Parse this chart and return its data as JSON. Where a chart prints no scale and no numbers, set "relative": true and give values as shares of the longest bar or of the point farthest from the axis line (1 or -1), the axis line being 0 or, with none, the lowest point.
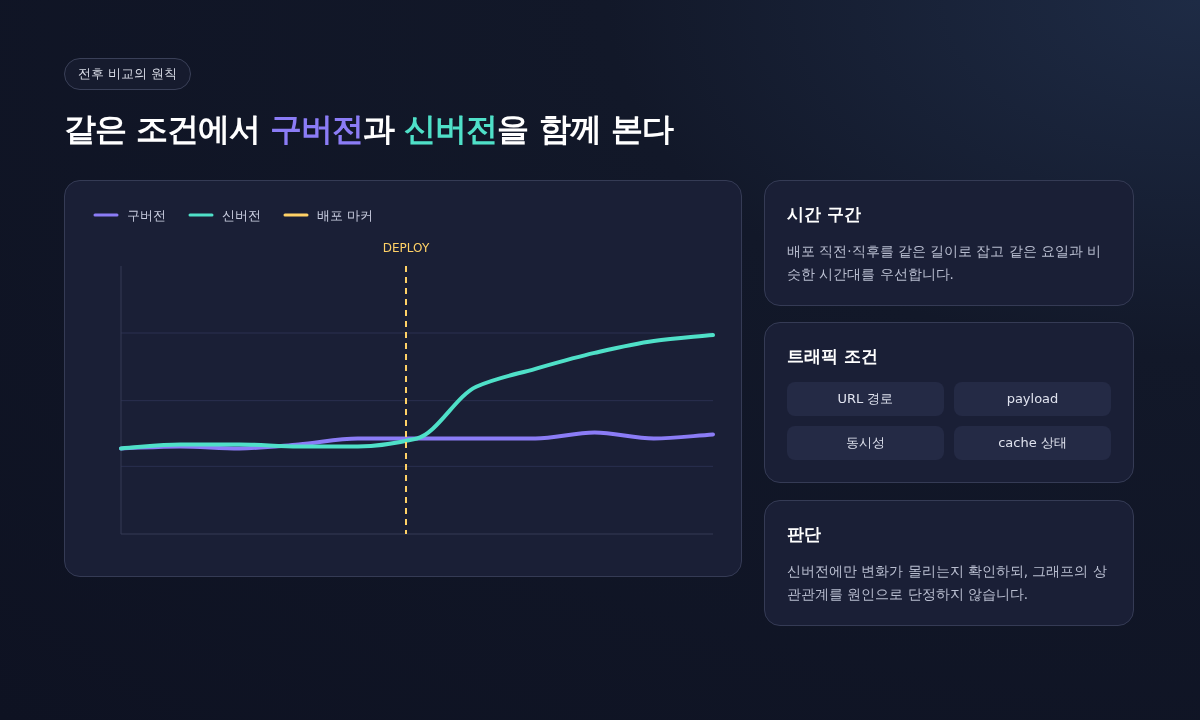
{
  "chart_data": [
    {
      "type": "line",
      "subtitle": "전후 비교의 원칙",
      "title": "같은 조건에서 구버전과 신버전을 함께 본다",
      "relative": true,
      "categories": [
        null,
        null,
        null,
        null,
        null,
        null,
        null,
        null,
        null,
        null,
        null
      ],
      "legend": "top left",
      "marker": "none",
      "line_style": "solid",
      "series": [
        {
          "name": "구버전",
          "color": "#8b7cf6",
          "values": [
            0.43,
            0.44,
            0.43,
            0.45,
            0.48,
            0.48,
            0.48,
            0.48,
            0.51,
            0.48,
            0.5
          ]
        },
        {
          "name": "신버전",
          "color": "#4fe0c8",
          "values": [
            0.43,
            0.45,
            0.45,
            0.44,
            0.44,
            0.48,
            0.74,
            0.83,
            0.91,
            0.97,
            1
          ]
        }
      ],
      "ref_lines": [
        {
          "axis": "x",
          "label": "DEPLOY",
          "color": "#ffd166",
          "line_style": "dashed"
        },
        {
          "axis": "y",
          "value": 0.34,
          "color": "#2a3050",
          "line_style": "solid"
        },
        {
          "axis": "y",
          "value": 0.67,
          "color": "#2a3050",
          "line_style": "solid"
        },
        {
          "axis": "y",
          "value": 1.01,
          "color": "#2a3050",
          "line_style": "solid"
        }
      ],
      "annotations": [
        "배포 마커"
      ]
    },
    {
      "type": "other",
      "title": "시간 구간",
      "annotations": [
        "배포 직전·직후를 같은 길이로 잡고 같은 요일과 비슷한 시간대를 우선합니다."
      ]
    },
    {
      "type": "other",
      "title": "트래픽 조건",
      "annotations": [
        "URL 경로",
        "payload",
        "동시성",
        "cache 상태"
      ]
    },
    {
      "type": "other",
      "title": "판단",
      "annotations": [
        "신버전에만 변화가 몰리는지 확인하되, 그래프의 상관관계를 원인으로 단정하지 않습니다."
      ]
    }
  ]
}
